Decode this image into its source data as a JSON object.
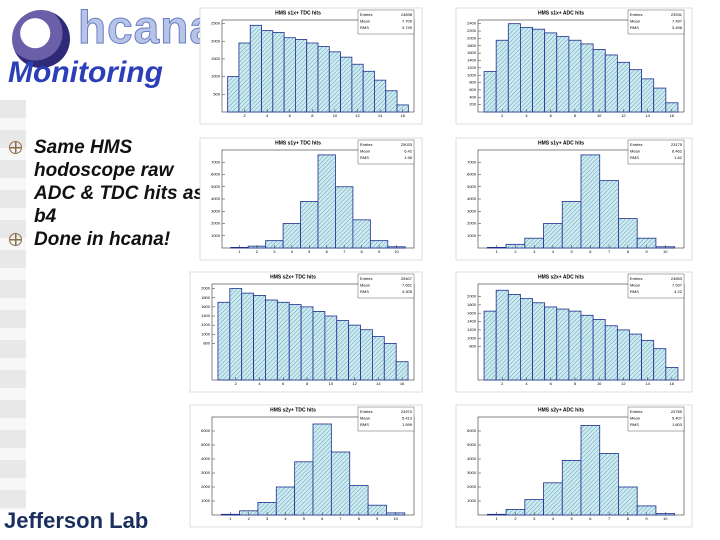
{
  "slide": {
    "title": "hcana",
    "subtitle": "Monitoring",
    "bullets": [
      "Same HMS hodoscope raw ADC & TDC hits as b4",
      "Done in hcana!"
    ],
    "footer": "Jefferson Lab"
  },
  "chart_data": [
    {
      "type": "histogram",
      "title": "HMS s1x+ TDC hits",
      "color": "#a9d8e0",
      "edge_color": "#1c2f8f",
      "bins": [
        0.5,
        1.5,
        2.5,
        3.5,
        4.5,
        5.5,
        6.5,
        7.5,
        8.5,
        9.5,
        10.5,
        11.5,
        12.5,
        13.5,
        14.5,
        15.5,
        16.5
      ],
      "values": [
        1000,
        1950,
        2450,
        2300,
        2250,
        2100,
        2050,
        1950,
        1850,
        1700,
        1550,
        1350,
        1150,
        900,
        600,
        200
      ],
      "xlim": [
        0,
        17
      ],
      "xticks": [
        2,
        4,
        6,
        8,
        10,
        12,
        14,
        16
      ],
      "ylim": [
        0,
        2600
      ],
      "yticks": [
        500,
        1000,
        1500,
        2000,
        2500
      ],
      "stats": [
        {
          "label": "Entries",
          "value": 24698
        },
        {
          "label": "Mean",
          "value": 7.709
        },
        {
          "label": "RMS",
          "value": 3.749
        }
      ]
    },
    {
      "type": "histogram",
      "title": "HMS s1x+ ADC hits",
      "color": "#a9d8e0",
      "edge_color": "#1c2f8f",
      "bins": [
        0.5,
        1.5,
        2.5,
        3.5,
        4.5,
        5.5,
        6.5,
        7.5,
        8.5,
        9.5,
        10.5,
        11.5,
        12.5,
        13.5,
        14.5,
        15.5,
        16.5
      ],
      "values": [
        1100,
        1950,
        2400,
        2300,
        2250,
        2150,
        2050,
        1950,
        1850,
        1700,
        1550,
        1350,
        1150,
        900,
        650,
        250
      ],
      "xlim": [
        0,
        17
      ],
      "xticks": [
        2,
        4,
        6,
        8,
        10,
        12,
        14,
        16
      ],
      "ylim": [
        0,
        2500
      ],
      "yticks": [
        200,
        400,
        600,
        800,
        1000,
        1200,
        1400,
        1600,
        1800,
        2000,
        2200,
        2400
      ],
      "stats": [
        {
          "label": "Entries",
          "value": 23931
        },
        {
          "label": "Mean",
          "value": 7.497
        },
        {
          "label": "RMS",
          "value": 3.496
        }
      ]
    },
    {
      "type": "histogram",
      "title": "HMS s1y+ TDC hits",
      "color": "#a9d8e0",
      "edge_color": "#1c2f8f",
      "bins": [
        0.5,
        1.5,
        2.5,
        3.5,
        4.5,
        5.5,
        6.5,
        7.5,
        8.5,
        9.5,
        10.5
      ],
      "values": [
        50,
        150,
        600,
        2000,
        3800,
        7600,
        5000,
        2300,
        600,
        100
      ],
      "xlim": [
        0,
        11
      ],
      "xticks": [
        1,
        2,
        3,
        4,
        5,
        6,
        7,
        8,
        9,
        10
      ],
      "ylim": [
        0,
        8000
      ],
      "yticks": [
        1000,
        2000,
        3000,
        4000,
        5000,
        6000,
        7000
      ],
      "stats": [
        {
          "label": "Entries",
          "value": 25033
        },
        {
          "label": "Mean",
          "value": 6.42
        },
        {
          "label": "RMS",
          "value": 1.56
        }
      ]
    },
    {
      "type": "histogram",
      "title": "HMS s1y+ ADC hits",
      "color": "#a9d8e0",
      "edge_color": "#1c2f8f",
      "bins": [
        0.5,
        1.5,
        2.5,
        3.5,
        4.5,
        5.5,
        6.5,
        7.5,
        8.5,
        9.5,
        10.5
      ],
      "values": [
        50,
        300,
        800,
        2000,
        3800,
        7600,
        5500,
        2400,
        800,
        100
      ],
      "xlim": [
        0,
        11
      ],
      "xticks": [
        1,
        2,
        3,
        4,
        5,
        6,
        7,
        8,
        9,
        10
      ],
      "ylim": [
        0,
        8000
      ],
      "yticks": [
        1000,
        2000,
        3000,
        4000,
        5000,
        6000,
        7000
      ],
      "stats": [
        {
          "label": "Entries",
          "value": 23175
        },
        {
          "label": "Mean",
          "value": 6.462
        },
        {
          "label": "RMS",
          "value": 1.62
        }
      ]
    },
    {
      "type": "histogram",
      "title": "HMS s2x+ TDC hits",
      "color": "#a9d8e0",
      "edge_color": "#1c2f8f",
      "bins": [
        0.5,
        1.5,
        2.5,
        3.5,
        4.5,
        5.5,
        6.5,
        7.5,
        8.5,
        9.5,
        10.5,
        11.5,
        12.5,
        13.5,
        14.5,
        15.5,
        16.5
      ],
      "values": [
        1700,
        2000,
        1900,
        1850,
        1750,
        1700,
        1650,
        1600,
        1500,
        1400,
        1300,
        1200,
        1100,
        950,
        800,
        400
      ],
      "xlim": [
        0,
        17
      ],
      "xticks": [
        2,
        4,
        6,
        8,
        10,
        12,
        14,
        16
      ],
      "ylim": [
        0,
        2100
      ],
      "yticks": [
        800,
        1000,
        1200,
        1400,
        1600,
        1800,
        2000
      ],
      "stats": [
        {
          "label": "Entries",
          "value": 25407
        },
        {
          "label": "Mean",
          "value": 7.651
        },
        {
          "label": "RMS",
          "value": 4.305
        }
      ]
    },
    {
      "type": "histogram",
      "title": "HMS s2x+ ADC hits",
      "color": "#a9d8e0",
      "edge_color": "#1c2f8f",
      "bins": [
        0.5,
        1.5,
        2.5,
        3.5,
        4.5,
        5.5,
        6.5,
        7.5,
        8.5,
        9.5,
        10.5,
        11.5,
        12.5,
        13.5,
        14.5,
        15.5,
        16.5
      ],
      "values": [
        1650,
        2150,
        2050,
        1950,
        1850,
        1750,
        1700,
        1650,
        1550,
        1450,
        1300,
        1200,
        1100,
        950,
        750,
        300
      ],
      "xlim": [
        0,
        17
      ],
      "xticks": [
        2,
        4,
        6,
        8,
        10,
        12,
        14,
        16
      ],
      "ylim": [
        0,
        2300
      ],
      "yticks": [
        800,
        1000,
        1200,
        1400,
        1600,
        1800,
        2000
      ],
      "stats": [
        {
          "label": "Entries",
          "value": 24653
        },
        {
          "label": "Mean",
          "value": 7.537
        },
        {
          "label": "RMS",
          "value": 4.22
        }
      ]
    },
    {
      "type": "histogram",
      "title": "HMS s2y+ TDC hits",
      "color": "#a9d8e0",
      "edge_color": "#1c2f8f",
      "bins": [
        0.5,
        1.5,
        2.5,
        3.5,
        4.5,
        5.5,
        6.5,
        7.5,
        8.5,
        9.5,
        10.5
      ],
      "values": [
        50,
        300,
        900,
        2000,
        3800,
        6500,
        4500,
        2100,
        700,
        150
      ],
      "xlim": [
        0,
        11
      ],
      "xticks": [
        1,
        2,
        3,
        4,
        5,
        6,
        7,
        8,
        9,
        10
      ],
      "ylim": [
        0,
        7000
      ],
      "yticks": [
        1000,
        2000,
        3000,
        4000,
        5000,
        6000
      ],
      "stats": [
        {
          "label": "Entries",
          "value": 24970
        },
        {
          "label": "Mean",
          "value": 5.413
        },
        {
          "label": "RMS",
          "value": 1.599
        }
      ]
    },
    {
      "type": "histogram",
      "title": "HMS s2y+ ADC hits",
      "color": "#a9d8e0",
      "edge_color": "#1c2f8f",
      "bins": [
        0.5,
        1.5,
        2.5,
        3.5,
        4.5,
        5.5,
        6.5,
        7.5,
        8.5,
        9.5,
        10.5
      ],
      "values": [
        50,
        400,
        1100,
        2300,
        3900,
        6400,
        4400,
        2000,
        650,
        100
      ],
      "xlim": [
        0,
        11
      ],
      "xticks": [
        1,
        2,
        3,
        4,
        5,
        6,
        7,
        8,
        9,
        10
      ],
      "ylim": [
        0,
        7000
      ],
      "yticks": [
        1000,
        2000,
        3000,
        4000,
        5000,
        6000
      ],
      "stats": [
        {
          "label": "Entries",
          "value": 24785
        },
        {
          "label": "Mean",
          "value": 5.407
        },
        {
          "label": "RMS",
          "value": 1.603
        }
      ]
    }
  ]
}
